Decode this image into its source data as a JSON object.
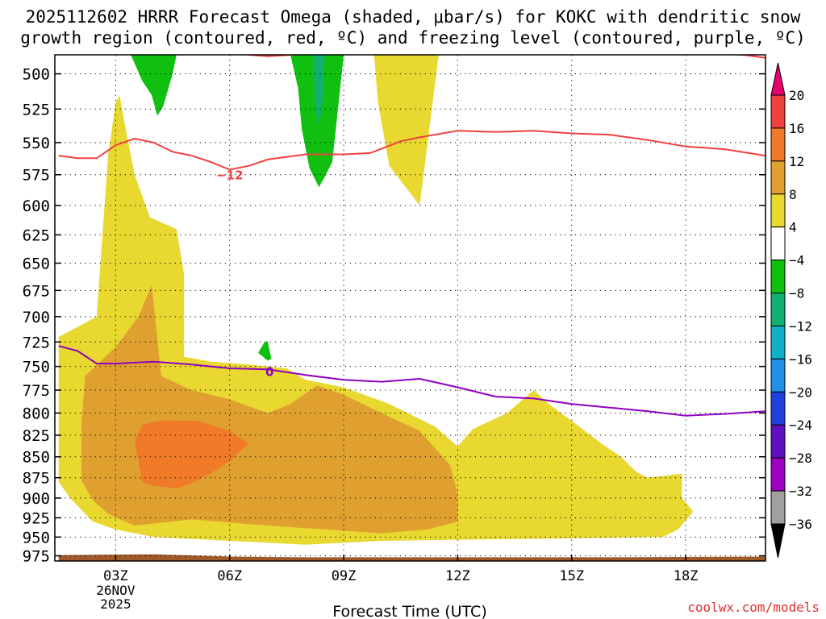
{
  "title_line1": "2025112602 HRRR Forecast Omega (shaded, μbar/s) for KOKC with dendritic snow",
  "title_line2": "growth region (contoured, red, ºC) and freezing level (contoured, purple, ºC)",
  "credit": "coolwx.com/models",
  "chart_data": {
    "type": "heatmap",
    "xlabel": "Forecast Time (UTC)",
    "date_label": [
      "26NOV",
      "2025"
    ],
    "x_range_hours": [
      1.4,
      20.1
    ],
    "x_ticks": [
      {
        "hour": 3,
        "label": "03Z"
      },
      {
        "hour": 6,
        "label": "06Z"
      },
      {
        "hour": 9,
        "label": "09Z"
      },
      {
        "hour": 12,
        "label": "12Z"
      },
      {
        "hour": 15,
        "label": "15Z"
      },
      {
        "hour": 18,
        "label": "18Z"
      }
    ],
    "y_range_hpa": [
      982,
      487
    ],
    "y_scale": "log-pressure",
    "y_ticks": [
      500,
      525,
      550,
      575,
      600,
      625,
      650,
      675,
      700,
      725,
      750,
      775,
      800,
      825,
      850,
      875,
      900,
      925,
      950,
      975
    ],
    "grid": true,
    "colorbar": {
      "labels": [
        "20",
        "16",
        "12",
        "8",
        "4",
        "−4",
        "−8",
        "−12",
        "−16",
        "−20",
        "−24",
        "−28",
        "−32",
        "−36"
      ],
      "colors": [
        "#e8006e",
        "#f04040",
        "#f07a28",
        "#e0a030",
        "#e8d830",
        "#ffffff",
        "#10c010",
        "#10b070",
        "#10b0c8",
        "#2090e8",
        "#2040e0",
        "#6010c0",
        "#a000c0",
        "#a0a0a0",
        "#000000"
      ]
    },
    "shaded_regions": [
      {
        "level": "4 to 8",
        "color": "#e8d830",
        "points": [
          [
            1.5,
            985
          ],
          [
            1.5,
            720
          ],
          [
            2.5,
            700
          ],
          [
            2.8,
            560
          ],
          [
            3.0,
            520
          ],
          [
            3.1,
            515
          ],
          [
            3.3,
            545
          ],
          [
            3.5,
            575
          ],
          [
            3.9,
            610
          ],
          [
            4.6,
            620
          ],
          [
            4.8,
            660
          ],
          [
            4.8,
            740
          ],
          [
            5.5,
            745
          ],
          [
            6.5,
            748
          ],
          [
            7.5,
            752
          ],
          [
            8.0,
            764
          ],
          [
            9,
            772
          ],
          [
            10.2,
            790
          ],
          [
            11.4,
            815
          ],
          [
            12.0,
            838
          ],
          [
            12.4,
            818
          ],
          [
            13.3,
            800
          ],
          [
            14.0,
            775
          ],
          [
            14.4,
            790
          ],
          [
            15.1,
            812
          ],
          [
            15.8,
            835
          ],
          [
            16.3,
            850
          ],
          [
            16.7,
            868
          ],
          [
            17.0,
            875
          ],
          [
            17.9,
            870
          ],
          [
            17.9,
            900
          ],
          [
            18.2,
            917
          ],
          [
            17.8,
            940
          ],
          [
            17.4,
            950
          ],
          [
            10,
            955
          ],
          [
            8,
            960
          ],
          [
            6,
            955
          ],
          [
            4,
            950
          ],
          [
            3,
            940
          ],
          [
            2.4,
            930
          ],
          [
            1.8,
            900
          ],
          [
            1.5,
            880
          ]
        ]
      },
      {
        "level": "4 to 8",
        "color": "#e8d830",
        "points": [
          [
            9.8,
            487
          ],
          [
            11.5,
            487
          ],
          [
            11.0,
            600
          ],
          [
            10.2,
            568
          ],
          [
            9.9,
            520
          ]
        ]
      },
      {
        "level": "8 to 12",
        "color": "#e0a030",
        "points": [
          [
            2.1,
            810
          ],
          [
            2.2,
            760
          ],
          [
            3.0,
            730
          ],
          [
            3.6,
            700
          ],
          [
            3.95,
            670
          ],
          [
            4.2,
            760
          ],
          [
            5.0,
            775
          ],
          [
            6.0,
            785
          ],
          [
            7.0,
            800
          ],
          [
            7.6,
            790
          ],
          [
            8.3,
            770
          ],
          [
            9.0,
            780
          ],
          [
            10.0,
            800
          ],
          [
            11,
            820
          ],
          [
            11.8,
            860
          ],
          [
            12.0,
            895
          ],
          [
            12.0,
            930
          ],
          [
            11.2,
            940
          ],
          [
            10,
            945
          ],
          [
            7,
            935
          ],
          [
            5,
            927
          ],
          [
            3.5,
            935
          ],
          [
            2.8,
            920
          ],
          [
            2.4,
            903
          ],
          [
            2.1,
            878
          ]
        ]
      },
      {
        "level": "12 to 16",
        "color": "#f07a28",
        "points": [
          [
            3.5,
            832
          ],
          [
            3.7,
            813
          ],
          [
            4.2,
            808
          ],
          [
            5.2,
            809
          ],
          [
            6.0,
            820
          ],
          [
            6.5,
            835
          ],
          [
            6.0,
            855
          ],
          [
            5.5,
            870
          ],
          [
            5,
            882
          ],
          [
            4.6,
            888
          ],
          [
            4.0,
            885
          ],
          [
            3.7,
            880
          ]
        ]
      },
      {
        "level": "-8 to -4",
        "color": "#10c010",
        "points": [
          [
            3.4,
            487
          ],
          [
            4.6,
            487
          ],
          [
            4.5,
            500
          ],
          [
            4.25,
            523
          ],
          [
            4.1,
            530
          ],
          [
            3.95,
            515
          ],
          [
            3.7,
            505
          ]
        ]
      },
      {
        "level": "-8 to -4",
        "color": "#10c010",
        "points": [
          [
            7.6,
            487
          ],
          [
            9.0,
            487
          ],
          [
            8.85,
            525
          ],
          [
            8.7,
            565
          ],
          [
            8.5,
            577
          ],
          [
            8.35,
            585
          ],
          [
            8.1,
            570
          ],
          [
            7.9,
            540
          ],
          [
            7.8,
            510
          ]
        ]
      },
      {
        "level": "-12 to -8",
        "color": "#10b070",
        "points": [
          [
            8.2,
            487
          ],
          [
            8.5,
            487
          ],
          [
            8.45,
            520
          ],
          [
            8.35,
            537
          ],
          [
            8.25,
            523
          ]
        ]
      },
      {
        "level": "-8 to -4",
        "color": "#10c010",
        "points": [
          [
            7.1,
            742
          ],
          [
            7.0,
            724
          ],
          [
            6.9,
            726
          ],
          [
            6.75,
            736
          ],
          [
            7.0,
            744
          ]
        ]
      },
      {
        "level": "ground",
        "color": "#a05a2a",
        "points": [
          [
            1.5,
            974
          ],
          [
            4,
            973
          ],
          [
            6,
            976
          ],
          [
            8,
            977
          ],
          [
            10,
            977
          ],
          [
            12,
            977
          ],
          [
            14,
            977
          ],
          [
            16,
            977
          ],
          [
            20.1,
            976
          ],
          [
            20.1,
            985
          ],
          [
            1.5,
            985
          ]
        ]
      }
    ],
    "series": [
      {
        "contour": "freezing level",
        "color": "#9000c0",
        "label": "0",
        "label_at": [
          7.05,
          755
        ],
        "points": [
          [
            1.5,
            729
          ],
          [
            2,
            734
          ],
          [
            2.5,
            747
          ],
          [
            3,
            747
          ],
          [
            4,
            745
          ],
          [
            5,
            748
          ],
          [
            6,
            752
          ],
          [
            7,
            753
          ],
          [
            8,
            759
          ],
          [
            9,
            764
          ],
          [
            10,
            766
          ],
          [
            11,
            763
          ],
          [
            12,
            772
          ],
          [
            13,
            782
          ],
          [
            14,
            784
          ],
          [
            15,
            790
          ],
          [
            16,
            794
          ],
          [
            17,
            798
          ],
          [
            18,
            803
          ],
          [
            19,
            801
          ],
          [
            20.1,
            798
          ]
        ]
      },
      {
        "contour": "-12 C",
        "color": "#f04040",
        "label": "−12",
        "label_at": [
          6.0,
          575
        ],
        "points": [
          [
            1.5,
            560
          ],
          [
            2,
            562
          ],
          [
            2.5,
            562
          ],
          [
            3,
            552
          ],
          [
            3.5,
            547
          ],
          [
            4,
            550
          ],
          [
            4.5,
            557
          ],
          [
            5,
            560
          ],
          [
            5.5,
            565
          ],
          [
            6,
            571
          ],
          [
            6.5,
            568
          ],
          [
            7,
            563
          ],
          [
            8,
            559
          ],
          [
            9,
            559
          ],
          [
            9.7,
            558
          ],
          [
            10.5,
            549
          ],
          [
            11,
            546
          ],
          [
            12,
            541
          ],
          [
            13,
            542
          ],
          [
            14,
            541
          ],
          [
            15,
            543
          ],
          [
            16,
            544
          ],
          [
            17,
            548
          ],
          [
            18,
            553
          ],
          [
            19,
            555
          ],
          [
            20.1,
            560
          ]
        ]
      },
      {
        "contour": "-12 C",
        "color": "#f04040",
        "points": [
          [
            5.5,
            483
          ],
          [
            6.5,
            487
          ],
          [
            7,
            488
          ],
          [
            7.7,
            487
          ],
          [
            9.0,
            481
          ]
        ]
      },
      {
        "contour": "-12 C",
        "color": "#f04040",
        "points": [
          [
            16.7,
            481
          ],
          [
            17.5,
            486
          ],
          [
            18.5,
            486
          ],
          [
            19.5,
            487
          ],
          [
            20.1,
            489
          ]
        ]
      }
    ]
  }
}
